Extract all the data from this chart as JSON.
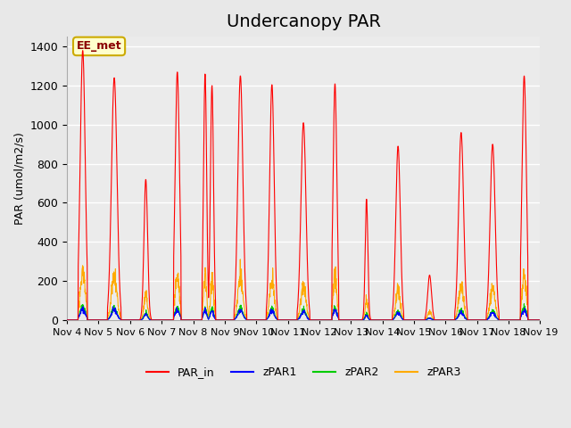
{
  "title": "Undercanopy PAR",
  "ylabel": "PAR (umol/m2/s)",
  "xlabel": "",
  "xlim_start": 0,
  "xlim_end": 15,
  "ylim": [
    0,
    1450
  ],
  "yticks": [
    0,
    200,
    400,
    600,
    800,
    1000,
    1200,
    1400
  ],
  "xtick_labels": [
    "Nov 4",
    "Nov 5",
    "Nov 6",
    "Nov 7",
    "Nov 8",
    "Nov 9",
    "Nov 10",
    "Nov 11",
    "Nov 12",
    "Nov 13",
    "Nov 14",
    "Nov 15",
    "Nov 16",
    "Nov 17",
    "Nov 18",
    "Nov 19"
  ],
  "legend_labels": [
    "PAR_in",
    "zPAR1",
    "zPAR2",
    "zPAR3"
  ],
  "line_colors": [
    "#ff0000",
    "#0000ff",
    "#00cc00",
    "#ffaa00"
  ],
  "annotation_text": "EE_met",
  "bg_color": "#e8e8e8",
  "plot_bg_color": "#ebebeb",
  "title_fontsize": 14,
  "axis_fontsize": 9,
  "legend_fontsize": 9,
  "n_points_per_day": 144,
  "n_days": 15
}
